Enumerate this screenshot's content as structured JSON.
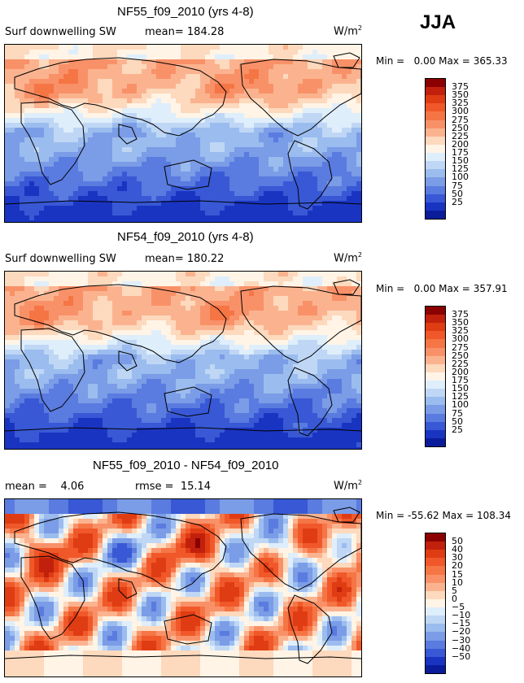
{
  "season": "JJA",
  "chart_data": [
    {
      "type": "heatmap",
      "title": "NF55_f09_2010 (yrs 4-8)",
      "variable": "Surf downwelling SW",
      "stat1_label": "mean=",
      "stat1_value": "184.28",
      "units": "W/m",
      "units_sup": "2",
      "min_label": "Min =",
      "min_value": "0.00",
      "max_label": "Max =",
      "max_value": "365.33",
      "colorbar_levels": [
        "375",
        "350",
        "325",
        "300",
        "275",
        "250",
        "225",
        "200",
        "175",
        "150",
        "125",
        "100",
        "75",
        "50",
        "25"
      ],
      "colorbar_colors": [
        "#8b0000",
        "#c1210c",
        "#e03c13",
        "#f0582a",
        "#f57545",
        "#f99168",
        "#fbb38f",
        "#fdd9bd",
        "#fff4e6",
        "#dfeefb",
        "#bfd7f5",
        "#9bbcee",
        "#7b9ce6",
        "#5a7bdf",
        "#3858d5",
        "#1a34c2",
        "#0a1c9a"
      ]
    },
    {
      "type": "heatmap",
      "title": "NF54_f09_2010 (yrs 4-8)",
      "variable": "Surf downwelling SW",
      "stat1_label": "mean=",
      "stat1_value": "180.22",
      "units": "W/m",
      "units_sup": "2",
      "min_label": "Min =",
      "min_value": "0.00",
      "max_label": "Max =",
      "max_value": "357.91",
      "colorbar_levels": [
        "375",
        "350",
        "325",
        "300",
        "275",
        "250",
        "225",
        "200",
        "175",
        "150",
        "125",
        "100",
        "75",
        "50",
        "25"
      ],
      "colorbar_colors": [
        "#8b0000",
        "#c1210c",
        "#e03c13",
        "#f0582a",
        "#f57545",
        "#f99168",
        "#fbb38f",
        "#fdd9bd",
        "#fff4e6",
        "#dfeefb",
        "#bfd7f5",
        "#9bbcee",
        "#7b9ce6",
        "#5a7bdf",
        "#3858d5",
        "#1a34c2",
        "#0a1c9a"
      ]
    },
    {
      "type": "heatmap",
      "title": "NF55_f09_2010 - NF54_f09_2010",
      "variable": "",
      "stat1_label": "mean =",
      "stat1_value": "4.06",
      "stat2_label": "rmse =",
      "stat2_value": "15.14",
      "units": "W/m",
      "units_sup": "2",
      "min_label": "Min =",
      "min_value": "-55.62",
      "max_label": "Max =",
      "max_value": "108.34",
      "colorbar_levels": [
        "50",
        "40",
        "30",
        "20",
        "15",
        "10",
        "5",
        "0",
        "−5",
        "−10",
        "−15",
        "−20",
        "−30",
        "−40",
        "−50"
      ],
      "colorbar_colors": [
        "#8b0000",
        "#c1210c",
        "#e03c13",
        "#f0582a",
        "#f57545",
        "#f99168",
        "#fbb38f",
        "#fdd9bd",
        "#fff4e6",
        "#dfeefb",
        "#bfd7f5",
        "#9bbcee",
        "#7b9ce6",
        "#5a7bdf",
        "#3858d5",
        "#1a34c2",
        "#0a1c9a"
      ]
    }
  ]
}
